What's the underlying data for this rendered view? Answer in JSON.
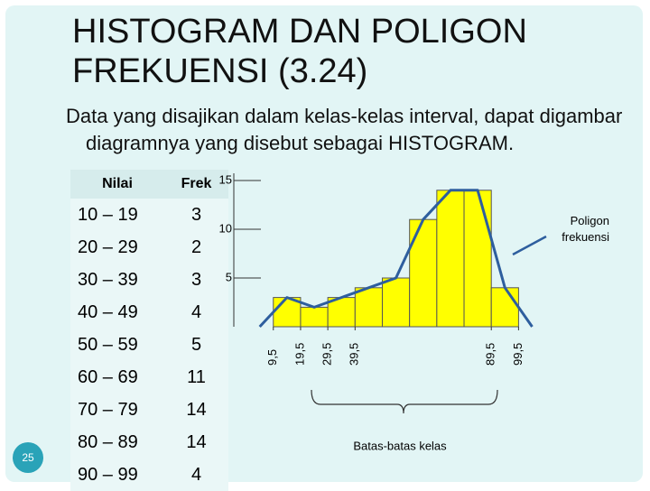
{
  "title": [
    "HISTOGRAM DAN POLIGON",
    "FREKUENSI  (3.24)"
  ],
  "text": "Data yang disajikan dalam kelas-kelas interval, dapat digambar diagramnya yang disebut sebagai HISTOGRAM.",
  "table": {
    "header": [
      "Nilai",
      "Frek"
    ],
    "rows": [
      [
        "10 – 19",
        "3"
      ],
      [
        "20 – 29",
        "2"
      ],
      [
        "30 – 39",
        "3"
      ],
      [
        "40 – 49",
        "4"
      ],
      [
        "50 – 59",
        "5"
      ],
      [
        "60 – 69",
        "11"
      ],
      [
        "70 – 79",
        "14"
      ],
      [
        "80 – 89",
        "14"
      ],
      [
        "90 – 99",
        "4"
      ]
    ]
  },
  "slide_number": "25",
  "chart_data": {
    "type": "histogram",
    "bins": [
      9.5,
      19.5,
      29.5,
      39.5,
      49.5,
      59.5,
      69.5,
      79.5,
      89.5,
      99.5
    ],
    "values": [
      3,
      2,
      3,
      4,
      5,
      11,
      14,
      14,
      4
    ],
    "color": "#ffff00",
    "lines": [
      {
        "name": "Poligon frekuensi",
        "color": "#2e5e9e",
        "x": [
          4.5,
          14.5,
          24.5,
          34.5,
          44.5,
          54.5,
          64.5,
          74.5,
          84.5,
          94.5,
          104.5
        ],
        "values": [
          0,
          3,
          2,
          3,
          4,
          5,
          11,
          14,
          14,
          4,
          0
        ]
      }
    ],
    "xlim": [
      -5,
      105
    ],
    "xticks": [
      {
        "value": 9.5,
        "label": "9,5"
      },
      {
        "value": 19.5,
        "label": "19,5"
      },
      {
        "value": 29.5,
        "label": "29,5"
      },
      {
        "value": 39.5,
        "label": "39,5"
      },
      {
        "value": 89.5,
        "label": "89,5"
      },
      {
        "value": 99.5,
        "label": "99,5"
      }
    ],
    "ylim": [
      0,
      15
    ],
    "yticks": [
      5,
      10,
      15
    ],
    "annotation": "Batas-batas kelas"
  }
}
